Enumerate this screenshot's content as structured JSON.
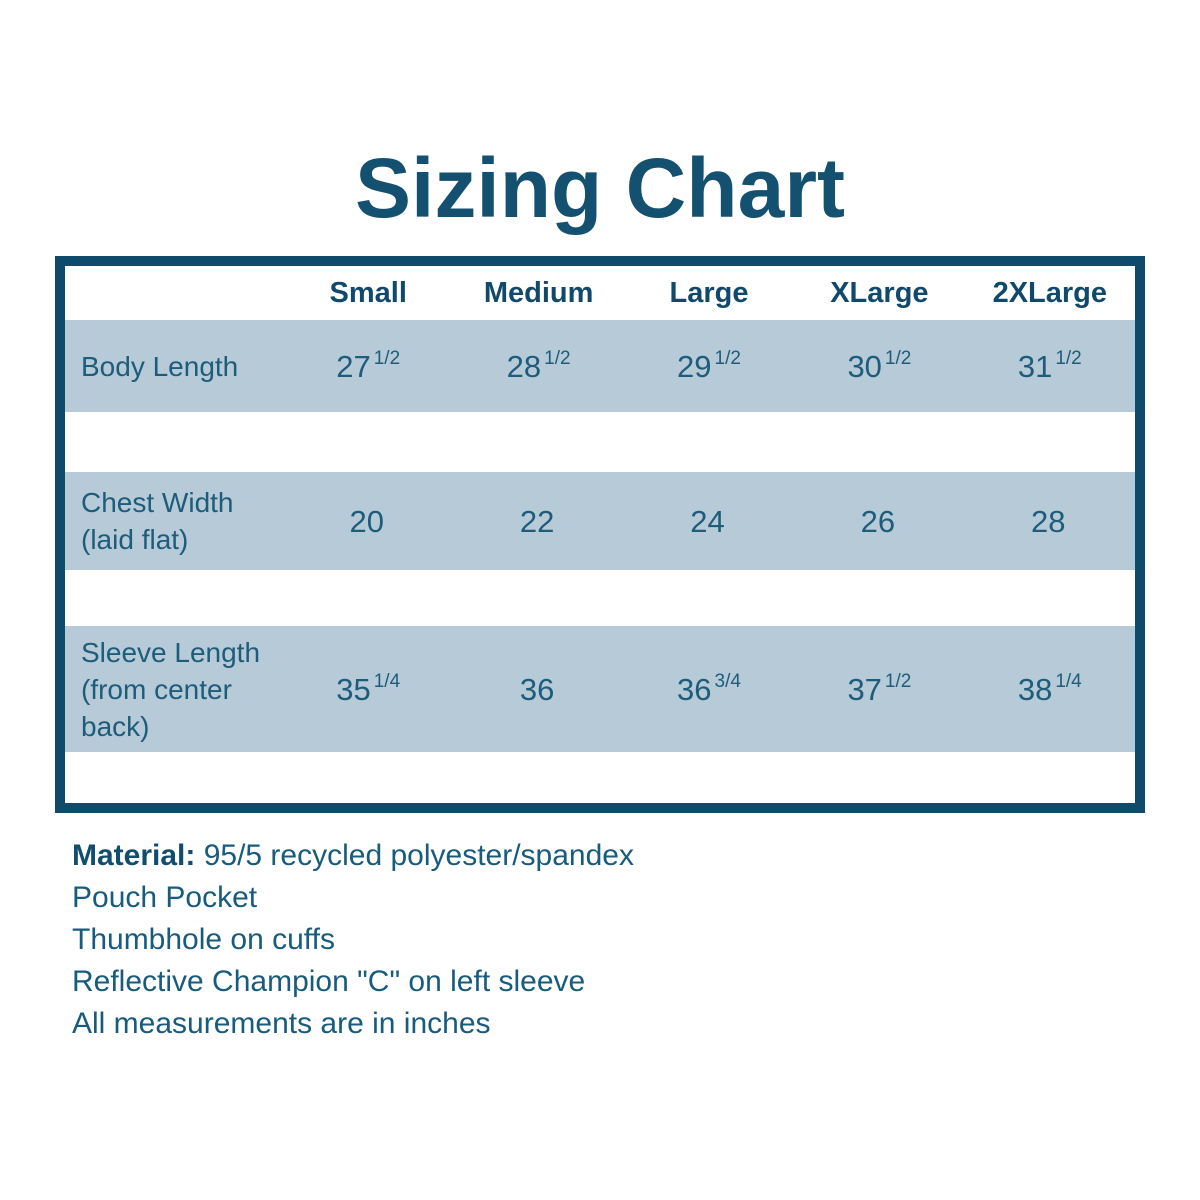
{
  "title": "Sizing Chart",
  "colors": {
    "dark_teal_border": "#0d4a6c",
    "title_text": "#14506f",
    "header_text": "#10496b",
    "cell_text": "#1e5c7c",
    "row_band_blue": "#b6cad7",
    "background": "#ffffff"
  },
  "table": {
    "columns": [
      "Small",
      "Medium",
      "Large",
      "XLarge",
      "2XLarge"
    ],
    "rows": [
      {
        "label": "Body Length",
        "values": [
          {
            "whole": "27",
            "frac": "1/2"
          },
          {
            "whole": "28",
            "frac": "1/2"
          },
          {
            "whole": "29",
            "frac": "1/2"
          },
          {
            "whole": "30",
            "frac": "1/2"
          },
          {
            "whole": "31",
            "frac": "1/2"
          }
        ]
      },
      {
        "label": "Chest Width (laid flat)",
        "values": [
          {
            "whole": "20",
            "frac": ""
          },
          {
            "whole": "22",
            "frac": ""
          },
          {
            "whole": "24",
            "frac": ""
          },
          {
            "whole": "26",
            "frac": ""
          },
          {
            "whole": "28",
            "frac": ""
          }
        ]
      },
      {
        "label": "Sleeve Length (from center back)",
        "values": [
          {
            "whole": "35",
            "frac": "1/4"
          },
          {
            "whole": "36",
            "frac": ""
          },
          {
            "whole": "36",
            "frac": "3/4"
          },
          {
            "whole": "37",
            "frac": "1/2"
          },
          {
            "whole": "38",
            "frac": "1/4"
          }
        ]
      }
    ]
  },
  "notes": [
    {
      "bold": "Material:",
      "text": " 95/5 recycled polyester/spandex"
    },
    {
      "bold": "",
      "text": "Pouch Pocket"
    },
    {
      "bold": "",
      "text": "Thumbhole on cuffs"
    },
    {
      "bold": "",
      "text": "Reflective Champion \"C\" on left sleeve"
    },
    {
      "bold": "",
      "text": "All measurements are in inches"
    }
  ],
  "chart_data": {
    "type": "table",
    "title": "Sizing Chart",
    "columns": [
      "Small",
      "Medium",
      "Large",
      "XLarge",
      "2XLarge"
    ],
    "rows": [
      {
        "label": "Body Length",
        "values": [
          27.5,
          28.5,
          29.5,
          30.5,
          31.5
        ]
      },
      {
        "label": "Chest Width (laid flat)",
        "values": [
          20,
          22,
          24,
          26,
          28
        ]
      },
      {
        "label": "Sleeve Length (from center back)",
        "values": [
          35.25,
          36,
          36.75,
          37.5,
          38.25
        ]
      }
    ],
    "units": "inches",
    "annotations": [
      "Material: 95/5 recycled polyester/spandex",
      "Pouch Pocket",
      "Thumbhole on cuffs",
      "Reflective Champion \"C\" on left sleeve",
      "All measurements are in inches"
    ]
  }
}
